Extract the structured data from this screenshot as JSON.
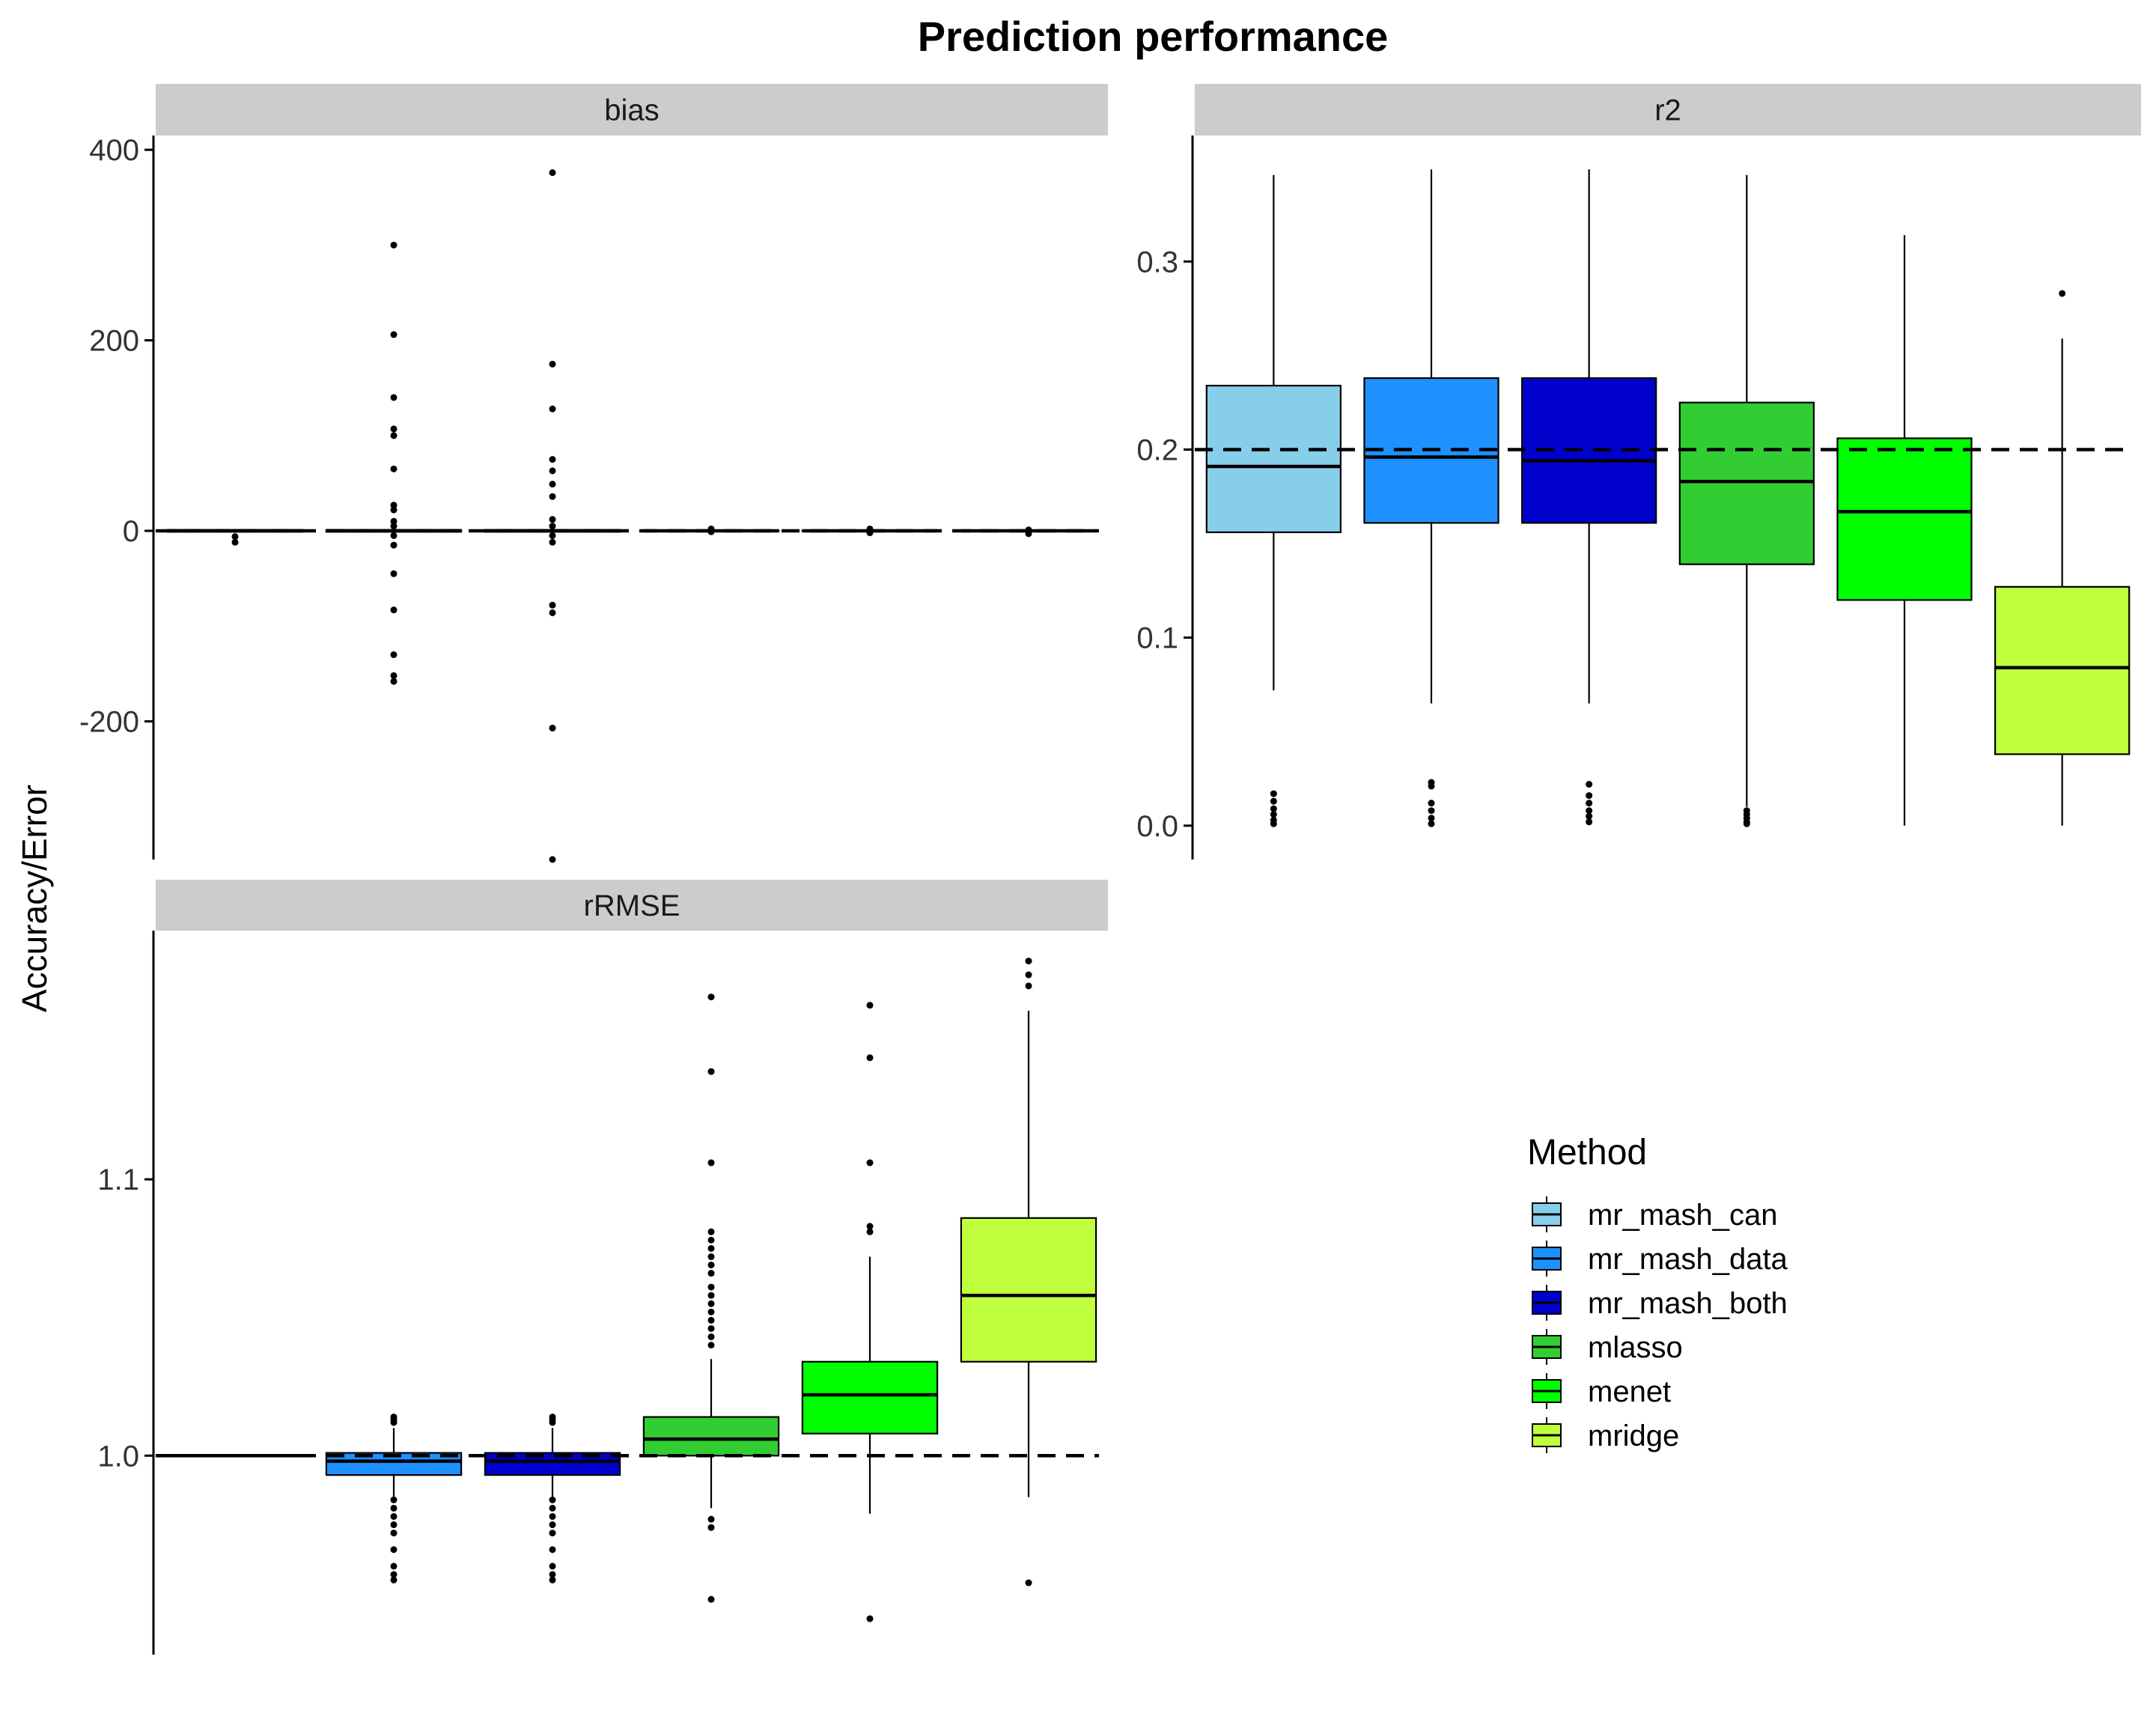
{
  "chart_data": {
    "type": "boxplot",
    "title": "Prediction performance",
    "ylabel": "Accuracy/Error",
    "legend": {
      "title": "Method",
      "placement": "right",
      "items": [
        {
          "name": "mr_mash_can",
          "color": "#87CEEB"
        },
        {
          "name": "mr_mash_data",
          "color": "#1E90FF"
        },
        {
          "name": "mr_mash_both",
          "color": "#0000CD"
        },
        {
          "name": "mlasso",
          "color": "#32CD32"
        },
        {
          "name": "menet",
          "color": "#00FF00"
        },
        {
          "name": "mridge",
          "color": "#C0FF3E"
        }
      ]
    },
    "categories": [
      "mr_mash_can",
      "mr_mash_data",
      "mr_mash_both",
      "mlasso",
      "menet",
      "mridge"
    ],
    "panels": [
      {
        "name": "bias",
        "ylim": [
          -345,
          415
        ],
        "yticks": [
          400,
          200,
          0,
          -200
        ],
        "ytick_labels": [
          "400",
          "200",
          "0",
          "-200"
        ],
        "reference_line": 0,
        "boxes": [
          {
            "q1": -1,
            "median": 0,
            "q3": 1,
            "whisker_low": -2,
            "whisker_high": 2,
            "outliers": [
              -6,
              -12
            ]
          },
          {
            "q1": -1,
            "median": 0,
            "q3": 1,
            "whisker_low": -2,
            "whisker_high": 2,
            "outliers": [
              300,
              206,
              140,
              107,
              100,
              65,
              27,
              22,
              10,
              5,
              -5,
              -15,
              -45,
              -83,
              -130,
              -152,
              -158
            ]
          },
          {
            "q1": -1,
            "median": 0,
            "q3": 1,
            "whisker_low": -2,
            "whisker_high": 2,
            "outliers": [
              376,
              175,
              128,
              75,
              63,
              49,
              36,
              12,
              5,
              -5,
              -12,
              -78,
              -86,
              -207,
              -345
            ]
          },
          {
            "q1": -0.5,
            "median": 0,
            "q3": 0.5,
            "whisker_low": -1,
            "whisker_high": 1,
            "outliers": [
              2,
              -1
            ]
          },
          {
            "q1": -0.5,
            "median": 0,
            "q3": 0.5,
            "whisker_low": -1,
            "whisker_high": 1,
            "outliers": [
              2,
              -2
            ]
          },
          {
            "q1": -0.5,
            "median": 0,
            "q3": 0.5,
            "whisker_low": -1,
            "whisker_high": 1,
            "outliers": [
              1,
              -3
            ]
          }
        ]
      },
      {
        "name": "r2",
        "ylim": [
          -0.018,
          0.367
        ],
        "yticks": [
          0.3,
          0.2,
          0.1,
          0.0
        ],
        "ytick_labels": [
          "0.3",
          "0.2",
          "0.1",
          "0.0"
        ],
        "reference_line": 0.2,
        "boxes": [
          {
            "q1": 0.156,
            "median": 0.191,
            "q3": 0.234,
            "whisker_low": 0.072,
            "whisker_high": 0.346,
            "outliers": [
              0.017,
              0.013,
              0.009,
              0.006,
              0.003,
              0.001
            ]
          },
          {
            "q1": 0.161,
            "median": 0.196,
            "q3": 0.238,
            "whisker_low": 0.065,
            "whisker_high": 0.349,
            "outliers": [
              0.023,
              0.021,
              0.012,
              0.008,
              0.004,
              0.001
            ]
          },
          {
            "q1": 0.161,
            "median": 0.194,
            "q3": 0.238,
            "whisker_low": 0.065,
            "whisker_high": 0.349,
            "outliers": [
              0.022,
              0.016,
              0.012,
              0.008,
              0.005,
              0.002
            ]
          },
          {
            "q1": 0.139,
            "median": 0.183,
            "q3": 0.225,
            "whisker_low": 0.01,
            "whisker_high": 0.346,
            "outliers": [
              0.008,
              0.006,
              0.004,
              0.002,
              0.001
            ]
          },
          {
            "q1": 0.12,
            "median": 0.167,
            "q3": 0.206,
            "whisker_low": 0.0,
            "whisker_high": 0.314,
            "outliers": []
          },
          {
            "q1": 0.038,
            "median": 0.084,
            "q3": 0.127,
            "whisker_low": 0.0,
            "whisker_high": 0.259,
            "outliers": [
              0.283
            ]
          }
        ]
      },
      {
        "name": "rRMSE",
        "ylim": [
          0.928,
          1.19
        ],
        "yticks": [
          1.1,
          1.0
        ],
        "ytick_labels": [
          "1.1",
          "1.0"
        ],
        "reference_line": 1.0,
        "boxes": [
          {
            "q1": 1.0,
            "median": 1.0,
            "q3": 1.0,
            "whisker_low": 1.0,
            "whisker_high": 1.0,
            "outliers": []
          },
          {
            "q1": 0.993,
            "median": 0.998,
            "q3": 1.001,
            "whisker_low": 0.985,
            "whisker_high": 1.01,
            "outliers": [
              1.014,
              1.013,
              1.012,
              0.984,
              0.981,
              0.978,
              0.975,
              0.972,
              0.966,
              0.96,
              0.957,
              0.955
            ]
          },
          {
            "q1": 0.993,
            "median": 0.998,
            "q3": 1.001,
            "whisker_low": 0.985,
            "whisker_high": 1.01,
            "outliers": [
              1.014,
              1.013,
              1.012,
              0.984,
              0.981,
              0.978,
              0.975,
              0.972,
              0.966,
              0.96,
              0.957,
              0.955
            ]
          },
          {
            "q1": 1.0,
            "median": 1.006,
            "q3": 1.014,
            "whisker_low": 0.981,
            "whisker_high": 1.035,
            "outliers": [
              1.166,
              1.139,
              1.106,
              1.081,
              1.078,
              1.075,
              1.072,
              1.069,
              1.066,
              1.061,
              1.058,
              1.055,
              1.052,
              1.049,
              1.046,
              1.043,
              1.04,
              0.977,
              0.974,
              0.948
            ]
          },
          {
            "q1": 1.008,
            "median": 1.022,
            "q3": 1.034,
            "whisker_low": 0.979,
            "whisker_high": 1.072,
            "outliers": [
              1.163,
              1.144,
              1.106,
              1.083,
              1.081,
              0.941
            ]
          },
          {
            "q1": 1.034,
            "median": 1.058,
            "q3": 1.086,
            "whisker_low": 0.985,
            "whisker_high": 1.161,
            "outliers": [
              1.179,
              1.174,
              1.17,
              0.954
            ]
          }
        ]
      }
    ]
  }
}
